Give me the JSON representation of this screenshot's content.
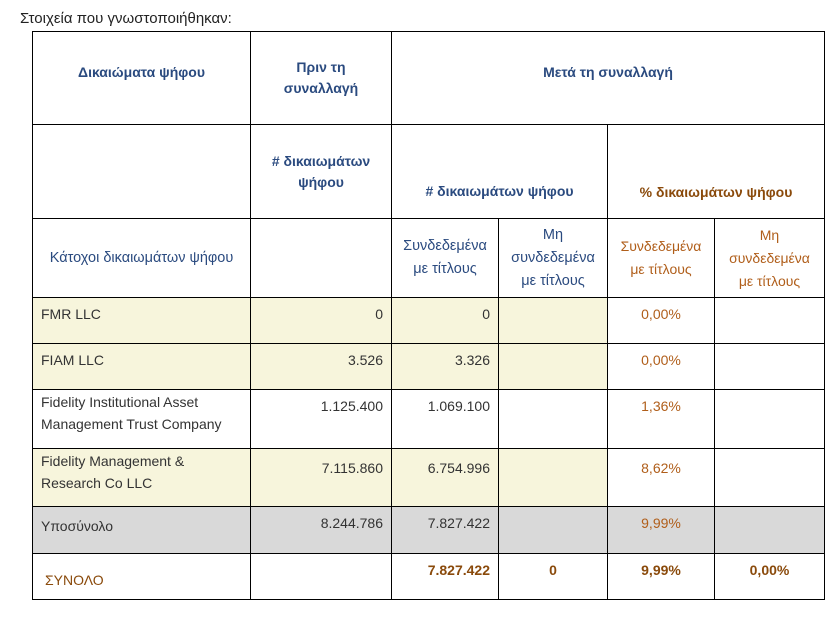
{
  "intro": "Στοιχεία που γνωστοποιήθηκαν:",
  "headers": {
    "voting_rights": "Δικαιώματα ψήφου",
    "before": "Πριν τη συναλλαγή",
    "after": "Μετά τη συναλλαγή",
    "num_rights_before": "# δικαιωμάτων ψήφου",
    "num_rights_after": "# δικαιωμάτων ψήφου",
    "pct_rights": "% δικαιωμάτων ψήφου",
    "holders": "Κάτοχοι δικαιωμάτων ψήφου",
    "linked": "Συνδεδεμένα με τίτλους",
    "not_linked": "Μη συνδεδεμένα με τίτλους",
    "linked_pct": "Συνδεδεμένα με τίτλους",
    "not_linked_pct": "Μη συνδεδεμένα με τίτλους"
  },
  "rows": [
    {
      "holder": "FMR LLC",
      "before": "0",
      "after_linked": "0",
      "after_not_linked": "",
      "pct_linked": "0,00%",
      "pct_not_linked": ""
    },
    {
      "holder": "FIAM LLC",
      "before": "3.526",
      "after_linked": "3.326",
      "after_not_linked": "",
      "pct_linked": "0,00%",
      "pct_not_linked": ""
    },
    {
      "holder": "Fidelity Institutional Asset Management Trust Company",
      "before": "1.125.400",
      "after_linked": "1.069.100",
      "after_not_linked": "",
      "pct_linked": "1,36%",
      "pct_not_linked": ""
    },
    {
      "holder": "Fidelity Management & Research Co LLC",
      "before": "7.115.860",
      "after_linked": "6.754.996",
      "after_not_linked": "",
      "pct_linked": "8,62%",
      "pct_not_linked": ""
    }
  ],
  "subtotal": {
    "label": "Υποσύνολο",
    "before": "8.244.786",
    "after_linked": "7.827.422",
    "after_not_linked": "",
    "pct_linked": "9,99%",
    "pct_not_linked": ""
  },
  "total": {
    "label": "ΣΥΝΟΛΟ",
    "before": "",
    "after_linked": "7.827.422",
    "after_not_linked": "0",
    "pct_linked": "9,99%",
    "pct_not_linked": "0,00%"
  }
}
